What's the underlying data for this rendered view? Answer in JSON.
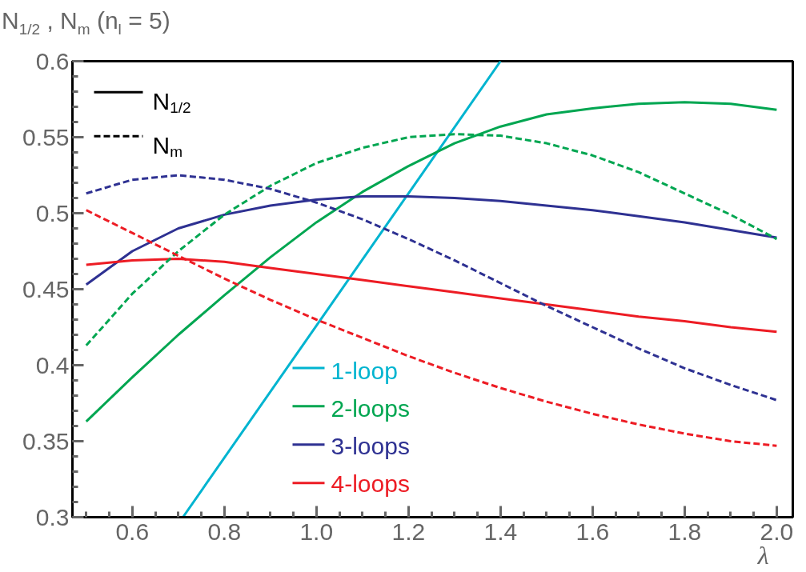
{
  "chart_data": {
    "type": "line",
    "ylabel": "N$_{1/2}$ , N$_{m}$ (n$_{l}$ = 5)",
    "xlabel": "λ",
    "x": [
      0.5,
      0.6,
      0.7,
      0.8,
      0.9,
      1.0,
      1.1,
      1.2,
      1.3,
      1.4,
      1.5,
      1.6,
      1.7,
      1.8,
      1.9,
      2.0
    ],
    "series": [
      {
        "name": "1-loop",
        "color": "#00b4d0",
        "line_style": "solid",
        "x": [
          0.71,
          1.0,
          1.2,
          1.4
        ],
        "values": [
          0.3,
          0.426,
          0.513,
          0.6
        ]
      },
      {
        "name": "2-loops",
        "color": "#00a651",
        "line_style": "solid",
        "values": [
          0.363,
          0.392,
          0.42,
          0.446,
          0.471,
          0.494,
          0.514,
          0.531,
          0.546,
          0.557,
          0.565,
          0.569,
          0.572,
          0.573,
          0.572,
          0.568
        ]
      },
      {
        "name": "3-loops",
        "color": "#2e3192",
        "line_style": "solid",
        "values": [
          0.453,
          0.475,
          0.49,
          0.499,
          0.505,
          0.509,
          0.511,
          0.511,
          0.51,
          0.508,
          0.505,
          0.502,
          0.498,
          0.494,
          0.489,
          0.484
        ]
      },
      {
        "name": "4-loops",
        "color": "#ed1c24",
        "line_style": "solid",
        "values": [
          0.466,
          0.469,
          0.47,
          0.468,
          0.464,
          0.46,
          0.456,
          0.452,
          0.448,
          0.444,
          0.44,
          0.436,
          0.432,
          0.429,
          0.425,
          0.422
        ]
      },
      {
        "color": "#00a651",
        "line_style": "dashed",
        "values": [
          0.413,
          0.447,
          0.475,
          0.499,
          0.518,
          0.533,
          0.543,
          0.55,
          0.552,
          0.551,
          0.546,
          0.538,
          0.527,
          0.513,
          0.499,
          0.483
        ]
      },
      {
        "color": "#2e3192",
        "line_style": "dashed",
        "values": [
          0.513,
          0.522,
          0.525,
          0.522,
          0.516,
          0.507,
          0.496,
          0.483,
          0.469,
          0.454,
          0.439,
          0.425,
          0.411,
          0.398,
          0.387,
          0.377
        ]
      },
      {
        "color": "#ed1c24",
        "line_style": "dashed",
        "values": [
          0.502,
          0.487,
          0.472,
          0.457,
          0.443,
          0.43,
          0.418,
          0.406,
          0.395,
          0.385,
          0.376,
          0.368,
          0.361,
          0.355,
          0.35,
          0.347
        ]
      }
    ],
    "annotations": [
      "N$_{1/2}$",
      "N$_{m}$"
    ],
    "legend": "bottom",
    "xlim": [
      0.47,
      2.035
    ],
    "ylim": [
      0.3,
      0.6
    ],
    "xticks": [
      {
        "value": 0.6,
        "label": "0.6"
      },
      {
        "value": 0.8,
        "label": "0.8"
      },
      {
        "value": 1.0,
        "label": "1.0"
      },
      {
        "value": 1.2,
        "label": "1.2"
      },
      {
        "value": 1.4,
        "label": "1.4"
      },
      {
        "value": 1.6,
        "label": "1.6"
      },
      {
        "value": 1.8,
        "label": "1.8"
      },
      {
        "value": 2.0,
        "label": "2.0"
      }
    ],
    "yticks": [
      0.3,
      0.35,
      0.4,
      0.45,
      0.5,
      0.55,
      0.6
    ],
    "grid": false
  }
}
